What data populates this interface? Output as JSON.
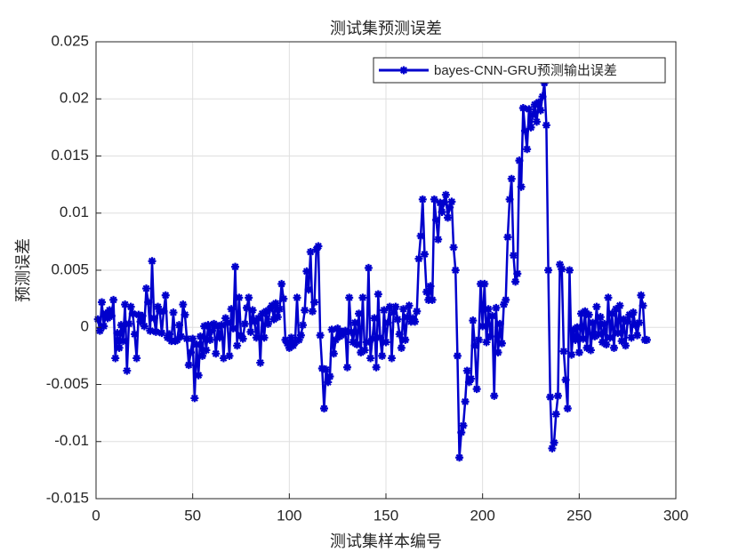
{
  "chart_data": {
    "type": "line",
    "title": "测试集预测误差",
    "xlabel": "测试集样本编号",
    "ylabel": "预测误差",
    "xlim": [
      0,
      300
    ],
    "xticks": [
      0,
      50,
      100,
      150,
      200,
      250,
      300
    ],
    "ylim": [
      -0.015,
      0.025
    ],
    "yticks": [
      -0.015,
      -0.01,
      -0.005,
      0,
      0.005,
      0.01,
      0.015,
      0.02,
      0.025
    ],
    "grid": true,
    "legend": "upper right",
    "x": [
      1,
      2,
      3,
      4,
      5,
      6,
      7,
      8,
      9,
      10,
      11,
      12,
      13,
      14,
      15,
      16,
      17,
      18,
      19,
      20,
      21,
      22,
      23,
      24,
      25,
      26,
      27,
      28,
      29,
      30,
      31,
      32,
      33,
      34,
      35,
      36,
      37,
      38,
      39,
      40,
      41,
      42,
      43,
      44,
      45,
      46,
      47,
      48,
      49,
      50,
      51,
      52,
      53,
      54,
      55,
      56,
      57,
      58,
      59,
      60,
      61,
      62,
      63,
      64,
      65,
      66,
      67,
      68,
      69,
      70,
      71,
      72,
      73,
      74,
      75,
      76,
      77,
      78,
      79,
      80,
      81,
      82,
      83,
      84,
      85,
      86,
      87,
      88,
      89,
      90,
      91,
      92,
      93,
      94,
      95,
      96,
      97,
      98,
      99,
      100,
      101,
      102,
      103,
      104,
      105,
      106,
      107,
      108,
      109,
      110,
      111,
      112,
      113,
      114,
      115,
      116,
      117,
      118,
      119,
      120,
      121,
      122,
      123,
      124,
      125,
      126,
      127,
      128,
      129,
      130,
      131,
      132,
      133,
      134,
      135,
      136,
      137,
      138,
      139,
      140,
      141,
      142,
      143,
      144,
      145,
      146,
      147,
      148,
      149,
      150,
      151,
      152,
      153,
      154,
      155,
      156,
      157,
      158,
      159,
      160,
      161,
      162,
      163,
      164,
      165,
      166,
      167,
      168,
      169,
      170,
      171,
      172,
      173,
      174,
      175,
      176,
      177,
      178,
      179,
      180,
      181,
      182,
      183,
      184,
      185,
      186,
      187,
      188,
      189,
      190,
      191,
      192,
      193,
      194,
      195,
      196,
      197,
      198,
      199,
      200,
      201,
      202,
      203,
      204,
      205,
      206,
      207,
      208,
      209,
      210,
      211,
      212,
      213,
      214,
      215,
      216,
      217,
      218,
      219,
      220,
      221,
      222,
      223,
      224,
      225,
      226,
      227,
      228,
      229,
      230,
      231,
      232,
      233,
      234,
      235,
      236,
      237,
      238,
      239,
      240,
      241,
      242,
      243,
      244,
      245,
      246,
      247,
      248,
      249,
      250,
      251,
      252,
      253,
      254,
      255,
      256,
      257,
      258,
      259,
      260,
      261,
      262,
      263,
      264,
      265,
      266,
      267,
      268,
      269,
      270,
      271,
      272,
      273,
      274,
      275,
      276,
      277,
      278,
      279,
      280,
      281,
      282,
      283,
      284,
      285
    ],
    "series": [
      {
        "name": "bayes-CNN-GRU预测输出误差",
        "color": "#0000cc",
        "values": [
          0.0007,
          -0.0003,
          0.0022,
          0.0001,
          0.0012,
          0.0008,
          0.0015,
          0.001,
          0.0024,
          -0.0027,
          -0.0005,
          -0.0018,
          0.0002,
          -0.0012,
          0.002,
          -0.0038,
          0.0003,
          0.0018,
          0.0012,
          -0.0006,
          -0.0027,
          0.0011,
          0.0005,
          0.001,
          0.0001,
          0.0034,
          0.0022,
          -0.0003,
          0.0058,
          0.0008,
          -0.0004,
          0.0018,
          0.0014,
          -0.0005,
          0.0014,
          0.0028,
          -0.0009,
          -0.0006,
          -0.0012,
          0.0013,
          -0.0012,
          -0.0011,
          0.0002,
          -0.0008,
          0.002,
          0.0011,
          -0.001,
          -0.0033,
          -0.0022,
          -0.001,
          -0.0062,
          -0.0015,
          -0.0042,
          -0.0008,
          -0.0025,
          0.0001,
          -0.002,
          0.0002,
          -0.0011,
          -0.0003,
          0.0003,
          -0.0023,
          0.0001,
          -0.0009,
          0.0002,
          -0.0027,
          0.0008,
          0.0004,
          -0.0025,
          0.0016,
          -0.0001,
          0.0053,
          -0.0016,
          0.0026,
          -0.0007,
          -0.001,
          0.0003,
          0.0017,
          0.0026,
          -0.0004,
          0.0015,
          0.0005,
          -0.0009,
          0.0008,
          -0.0031,
          0.0012,
          -0.0009,
          0.0014,
          0.0003,
          0.0016,
          0.0019,
          0.0007,
          0.0021,
          0.0009,
          0.0016,
          0.0038,
          0.0025,
          -0.0011,
          -0.0014,
          -0.0018,
          -0.0009,
          -0.0016,
          -0.0013,
          0.0026,
          -0.0011,
          -0.0007,
          0.0002,
          0.0015,
          0.0049,
          0.0033,
          0.0066,
          0.0014,
          0.0022,
          0.0068,
          0.0071,
          -0.0007,
          -0.0036,
          -0.0071,
          -0.0037,
          -0.0048,
          -0.0043,
          -0.0002,
          -0.0023,
          -0.0011,
          -0.0001,
          -0.0008,
          -0.0004,
          -0.0006,
          -0.0003,
          -0.0035,
          0.0026,
          -0.0004,
          -0.0013,
          0.0004,
          -0.0015,
          0.0012,
          -0.0022,
          0.0026,
          -0.002,
          -0.0013,
          0.0052,
          -0.0027,
          -0.001,
          0.0008,
          -0.0035,
          0.0029,
          -0.0009,
          -0.0025,
          0.0015,
          -0.0013,
          0.0004,
          0.0018,
          -0.0027,
          0.0013,
          0.0018,
          0.0007,
          -0.0006,
          -0.0018,
          0.0016,
          -0.0011,
          0.0009,
          0.0019,
          0.0005,
          0.0008,
          0.0005,
          0.0014,
          0.006,
          0.008,
          0.0112,
          0.0064,
          0.0031,
          0.0024,
          0.0036,
          0.0024,
          0.0112,
          0.0094,
          0.0077,
          0.0109,
          0.0101,
          0.0109,
          0.0116,
          0.0096,
          0.0105,
          0.011,
          0.007,
          0.005,
          -0.0025,
          -0.0114,
          -0.0092,
          -0.0086,
          -0.0065,
          -0.0038,
          -0.0048,
          -0.0045,
          0.0006,
          -0.0016,
          -0.0054,
          -0.0011,
          0.0038,
          0.0001,
          0.0038,
          -0.0013,
          0.0016,
          -0.0008,
          0.001,
          -0.006,
          0.0017,
          -0.0022,
          0.0003,
          -0.0014,
          0.002,
          0.0024,
          0.0079,
          0.0112,
          0.013,
          0.0063,
          0.004,
          0.0047,
          0.0146,
          0.0123,
          0.0192,
          0.0172,
          0.0156,
          0.0191,
          0.0175,
          0.0186,
          0.0195,
          0.018,
          0.0197,
          0.019,
          0.0202,
          0.0214,
          0.0177,
          0.005,
          -0.0061,
          -0.0106,
          -0.0101,
          -0.0076,
          -0.006,
          0.0055,
          0.0051,
          -0.0021,
          -0.0046,
          -0.0071,
          0.005,
          -0.0024,
          -0.0002,
          -0.0011,
          0.0,
          -0.0022,
          0.0012,
          -0.001,
          0.0014,
          -0.0018,
          0.0011,
          -0.002,
          0.0004,
          -0.0008,
          0.0018,
          -0.0006,
          0.0009,
          -0.0013,
          0.0003,
          -0.0015,
          0.0026,
          -0.0009,
          0.0012,
          -0.0018,
          0.0016,
          -0.0005,
          0.0019,
          -0.0012,
          0.0007,
          -0.0016,
          0.0005,
          0.0011,
          -0.0009,
          0.0013,
          0.0002,
          -0.0007,
          0.0004,
          0.0028,
          0.0019,
          -0.0011,
          -0.0011
        ]
      }
    ]
  }
}
